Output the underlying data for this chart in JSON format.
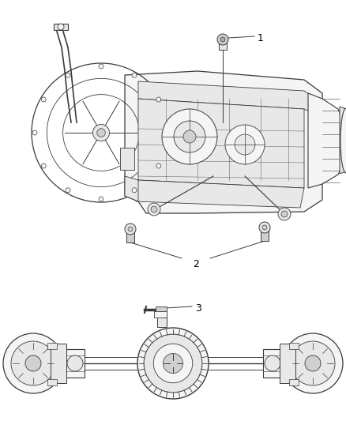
{
  "bg_color": "#ffffff",
  "fig_width": 4.38,
  "fig_height": 5.33,
  "dpi": 100,
  "label_1": "1",
  "label_2": "2",
  "label_3": "3",
  "label_color": "#000000",
  "label_fontsize": 9,
  "line_color": "#3a3a3a",
  "fill_light": "#f5f5f5",
  "fill_mid": "#e8e8e8",
  "fill_dark": "#d0d0d0"
}
